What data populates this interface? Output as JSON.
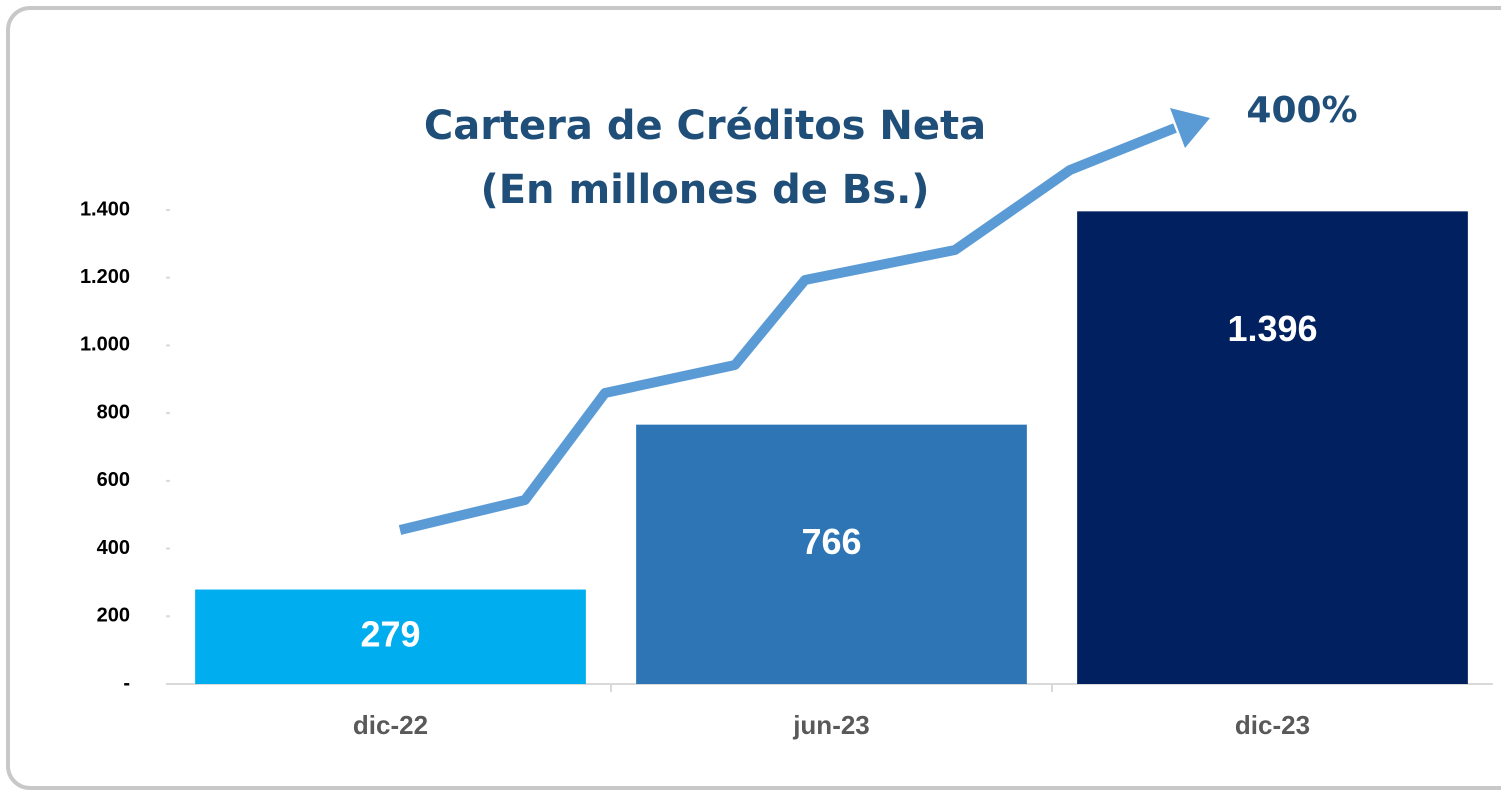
{
  "chart_data": {
    "type": "bar",
    "title": "Cartera de Créditos Neta",
    "subtitle": "(En millones de Bs.)",
    "annotation": "400%",
    "categories": [
      "dic-22",
      "jun-23",
      "dic-23"
    ],
    "values": [
      279,
      766,
      1396
    ],
    "value_labels": [
      "279",
      "766",
      "1.396"
    ],
    "colors": [
      "#00aeef",
      "#2e75b6",
      "#002060"
    ],
    "ylim": [
      0,
      1400
    ],
    "yticks": [
      {
        "value": 0,
        "label": "-"
      },
      200,
      400,
      600,
      800,
      {
        "value": 1000,
        "label": "1.000"
      },
      {
        "value": 1200,
        "label": "1.200"
      },
      {
        "value": 1400,
        "label": "1.400"
      }
    ],
    "grid": false
  }
}
